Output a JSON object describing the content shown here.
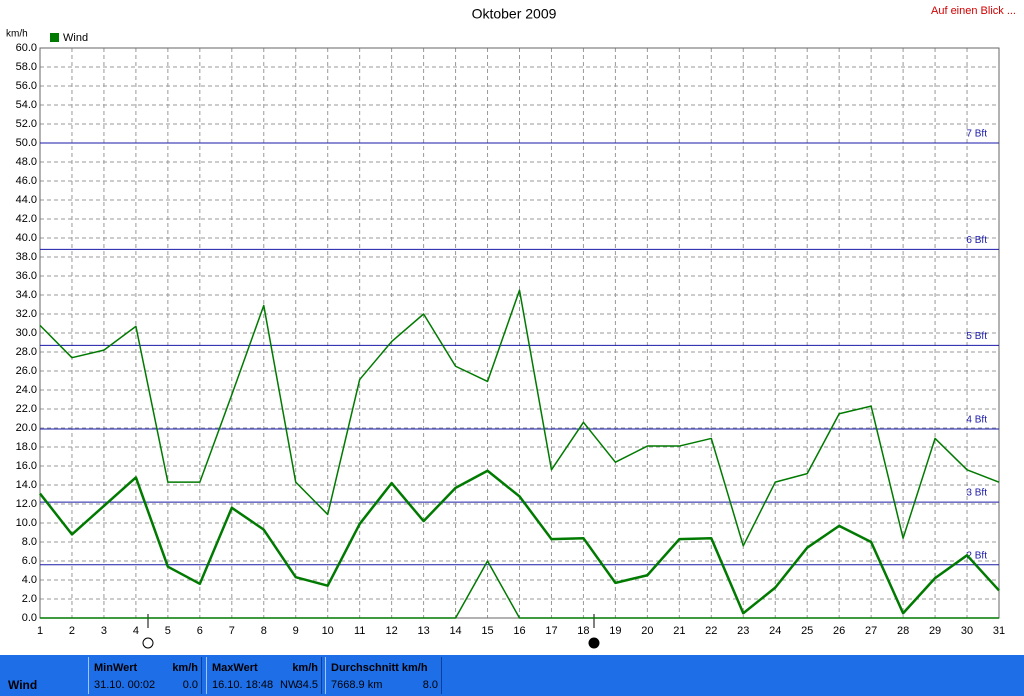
{
  "chart_data": {
    "type": "line",
    "title": "Oktober 2009",
    "corner_link": "Auf einen Blick ...",
    "y_unit": "km/h",
    "legend": "Wind",
    "legend_color": "#007a00",
    "x": [
      1,
      2,
      3,
      4,
      5,
      6,
      7,
      8,
      9,
      10,
      11,
      12,
      13,
      14,
      15,
      16,
      17,
      18,
      19,
      20,
      21,
      22,
      23,
      24,
      25,
      26,
      27,
      28,
      29,
      30,
      31
    ],
    "xlim": [
      1,
      31
    ],
    "xticks": [
      1,
      2,
      3,
      4,
      5,
      6,
      7,
      8,
      9,
      10,
      11,
      12,
      13,
      14,
      15,
      16,
      17,
      18,
      19,
      20,
      21,
      22,
      23,
      24,
      25,
      26,
      27,
      28,
      29,
      30,
      31
    ],
    "ylim": [
      0,
      60
    ],
    "yticks": [
      {
        "value": 0,
        "label": "0.0"
      },
      {
        "value": 2,
        "label": "2.0"
      },
      {
        "value": 4,
        "label": "4.0"
      },
      {
        "value": 6,
        "label": "6.0"
      },
      {
        "value": 8,
        "label": "8.0"
      },
      {
        "value": 10,
        "label": "10.0"
      },
      {
        "value": 12,
        "label": "12.0"
      },
      {
        "value": 14,
        "label": "14.0"
      },
      {
        "value": 16,
        "label": "16.0"
      },
      {
        "value": 18,
        "label": "18.0"
      },
      {
        "value": 20,
        "label": "20.0"
      },
      {
        "value": 22,
        "label": "22.0"
      },
      {
        "value": 24,
        "label": "24.0"
      },
      {
        "value": 26,
        "label": "26.0"
      },
      {
        "value": 28,
        "label": "28.0"
      },
      {
        "value": 30,
        "label": "30.0"
      },
      {
        "value": 32,
        "label": "32.0"
      },
      {
        "value": 34,
        "label": "34.0"
      },
      {
        "value": 36,
        "label": "36.0"
      },
      {
        "value": 38,
        "label": "38.0"
      },
      {
        "value": 40,
        "label": "40.0"
      },
      {
        "value": 42,
        "label": "42.0"
      },
      {
        "value": 44,
        "label": "44.0"
      },
      {
        "value": 46,
        "label": "46.0"
      },
      {
        "value": 48,
        "label": "48.0"
      },
      {
        "value": 50,
        "label": "50.0"
      },
      {
        "value": 52,
        "label": "52.0"
      },
      {
        "value": 54,
        "label": "54.0"
      },
      {
        "value": 56,
        "label": "56.0"
      },
      {
        "value": 58,
        "label": "58.0"
      },
      {
        "value": 60,
        "label": "60.0"
      }
    ],
    "grid": true,
    "series": [
      {
        "color": "#007a00",
        "width": 1.5,
        "values": [
          30.8,
          27.4,
          28.2,
          30.7,
          14.3,
          14.3,
          23.5,
          32.9,
          14.3,
          10.9,
          25.1,
          29.1,
          32.0,
          26.5,
          24.9,
          34.5,
          15.6,
          20.6,
          16.4,
          18.1,
          18.1,
          18.9,
          7.6,
          14.3,
          15.2,
          21.5,
          22.3,
          8.4,
          18.9,
          15.6,
          14.3
        ]
      },
      {
        "color": "#007a00",
        "width": 2.5,
        "values": [
          13.1,
          8.8,
          11.8,
          14.8,
          5.4,
          3.6,
          11.6,
          9.3,
          4.3,
          3.4,
          9.9,
          14.2,
          10.2,
          13.7,
          15.5,
          12.8,
          8.3,
          8.4,
          3.7,
          4.5,
          8.3,
          8.4,
          0.5,
          3.2,
          7.4,
          9.7,
          8.0,
          0.5,
          4.2,
          6.6,
          2.9
        ]
      },
      {
        "color": "#007a00",
        "width": 1.5,
        "values": [
          0,
          0,
          0,
          0,
          0,
          0,
          0,
          0,
          0,
          0,
          0,
          0,
          0,
          0,
          6.0,
          0,
          0,
          0,
          0,
          0,
          0,
          0,
          0,
          0,
          0,
          0,
          0,
          0,
          0,
          0,
          0
        ]
      }
    ],
    "reference_lines": {
      "color": "#1a1aa8",
      "values": [
        5.6,
        12.2,
        19.9,
        28.7,
        38.8,
        50.0
      ],
      "labels": [
        "2 Bft",
        "3 Bft",
        "4 Bft",
        "5 Bft",
        "6 Bft",
        "7 Bft"
      ]
    }
  },
  "footer": {
    "label": "Wind",
    "min": {
      "title": "MinWert",
      "unit": "km/h",
      "time": "31.10. 00:02",
      "value": "0.0"
    },
    "max": {
      "title": "MaxWert",
      "unit": "km/h",
      "time": "16.10. 18:48",
      "dir": "NW",
      "value": "34.5"
    },
    "avg": {
      "title": "Durchschnitt km/h",
      "distance": "7668.9 km",
      "value": "8.0"
    }
  }
}
